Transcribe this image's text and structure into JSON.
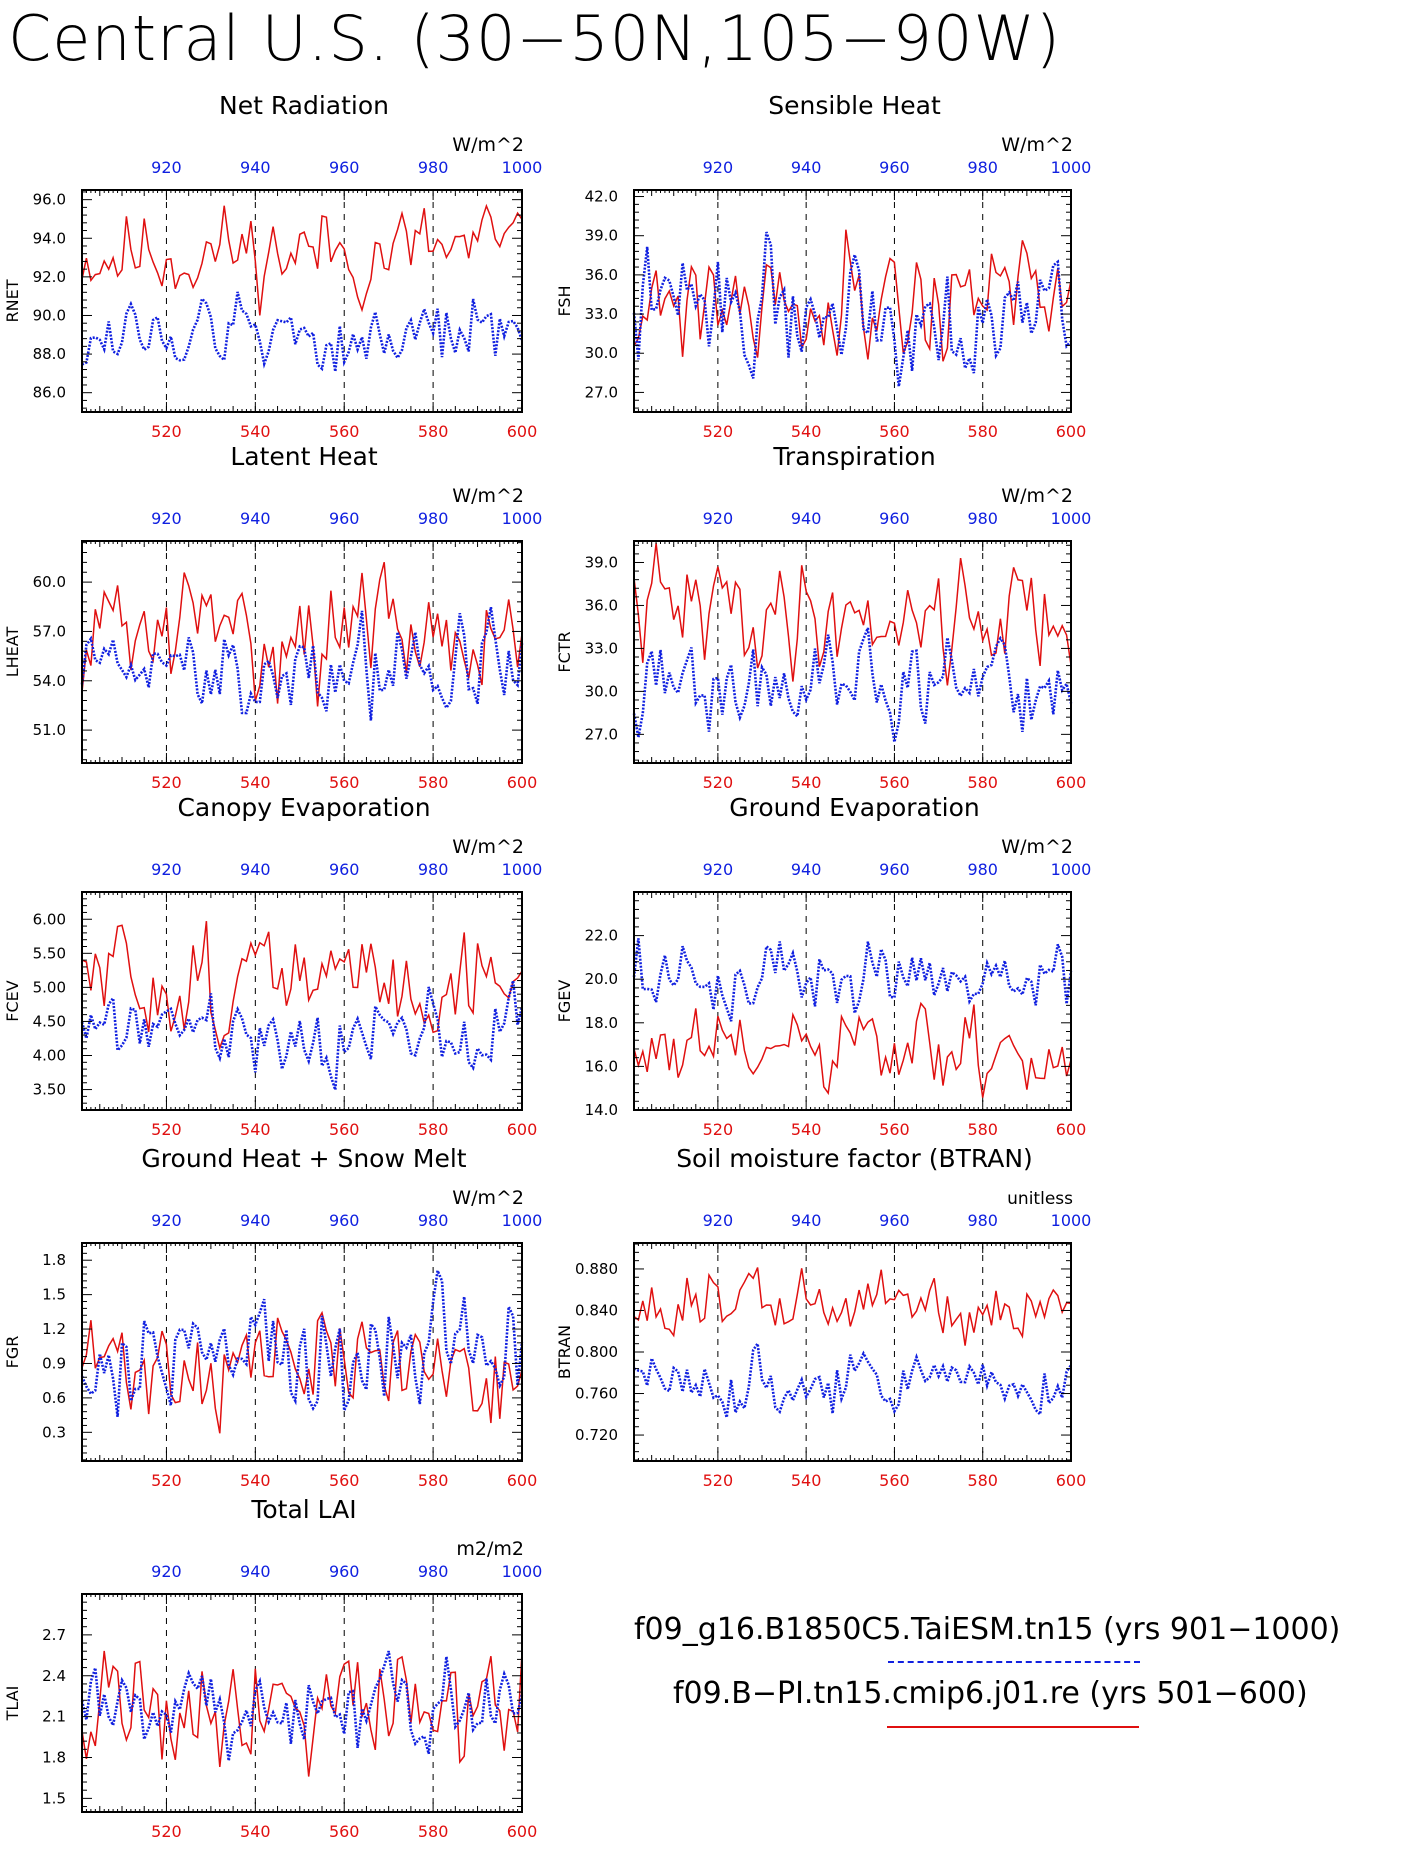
{
  "title": "Central U.S. (30−50N,105−90W)",
  "colors": {
    "red": "#e01010",
    "blue": "#1020e0",
    "axis": "#000000",
    "grid": "#000000"
  },
  "axes": {
    "bottom_ticks": [
      "520",
      "540",
      "560",
      "580",
      "600"
    ],
    "top_ticks": [
      "920",
      "940",
      "960",
      "980",
      "1000"
    ],
    "bottom_range": [
      501,
      600
    ],
    "top_range": [
      901,
      1000
    ],
    "vertical_dashed_lines_at": [
      520,
      540,
      560,
      580
    ]
  },
  "legend": {
    "entries": [
      {
        "label": "f09_g16.B1850C5.TaiESM.tn15 (yrs 901−1000)",
        "style": "dashed",
        "color": "#1020e0"
      },
      {
        "label": "f09.B−PI.tn15.cmip6.j01.re (yrs 501−600)",
        "style": "solid",
        "color": "#e01010"
      }
    ]
  },
  "chart_data": [
    {
      "type": "line",
      "title": "Net Radiation",
      "units": "W/m^2",
      "ylabel": "RNET",
      "ylim": [
        85.0,
        96.5
      ],
      "yticks": [
        "86.0",
        "88.0",
        "90.0",
        "92.0",
        "94.0",
        "96.0"
      ],
      "series": [
        {
          "color": "red",
          "baseline": 93.3,
          "spread": 1.5,
          "seed": 11
        },
        {
          "color": "blue",
          "baseline": 89.0,
          "spread": 1.2,
          "seed": 12
        }
      ]
    },
    {
      "type": "line",
      "title": "Sensible Heat",
      "units": "W/m^2",
      "ylabel": "FSH",
      "ylim": [
        25.5,
        42.5
      ],
      "yticks": [
        "27.0",
        "30.0",
        "33.0",
        "36.0",
        "39.0",
        "42.0"
      ],
      "series": [
        {
          "color": "red",
          "baseline": 34.5,
          "spread": 3.0,
          "seed": 21
        },
        {
          "color": "blue",
          "baseline": 33.5,
          "spread": 2.8,
          "seed": 22
        }
      ]
    },
    {
      "type": "line",
      "title": "Latent Heat",
      "units": "W/m^2",
      "ylabel": "LHEAT",
      "ylim": [
        49.0,
        62.5
      ],
      "yticks": [
        "51.0",
        "54.0",
        "57.0",
        "60.0"
      ],
      "series": [
        {
          "color": "red",
          "baseline": 57.0,
          "spread": 2.2,
          "seed": 31
        },
        {
          "color": "blue",
          "baseline": 54.8,
          "spread": 2.0,
          "seed": 32
        }
      ]
    },
    {
      "type": "line",
      "title": "Transpiration",
      "units": "W/m^2",
      "ylabel": "FCTR",
      "ylim": [
        25.0,
        40.5
      ],
      "yticks": [
        "27.0",
        "30.0",
        "33.0",
        "36.0",
        "39.0"
      ],
      "series": [
        {
          "color": "red",
          "baseline": 35.5,
          "spread": 2.5,
          "seed": 41
        },
        {
          "color": "blue",
          "baseline": 30.2,
          "spread": 2.0,
          "seed": 42
        }
      ]
    },
    {
      "type": "line",
      "title": "Canopy Evaporation",
      "units": "W/m^2",
      "ylabel": "FCEV",
      "ylim": [
        3.2,
        6.4
      ],
      "yticks": [
        "3.50",
        "4.00",
        "4.50",
        "5.00",
        "5.50",
        "6.00"
      ],
      "series": [
        {
          "color": "red",
          "baseline": 5.1,
          "spread": 0.5,
          "seed": 51
        },
        {
          "color": "blue",
          "baseline": 4.4,
          "spread": 0.35,
          "seed": 52
        }
      ]
    },
    {
      "type": "line",
      "title": "Ground Evaporation",
      "units": "W/m^2",
      "ylabel": "FGEV",
      "ylim": [
        14.0,
        24.0
      ],
      "yticks": [
        "14.0",
        "16.0",
        "18.0",
        "20.0",
        "22.0"
      ],
      "series": [
        {
          "color": "red",
          "baseline": 16.5,
          "spread": 1.3,
          "seed": 61
        },
        {
          "color": "blue",
          "baseline": 20.2,
          "spread": 1.0,
          "seed": 62
        }
      ]
    },
    {
      "type": "line",
      "title": "Ground Heat + Snow Melt",
      "units": "W/m^2",
      "ylabel": "FGR",
      "ylim": [
        0.05,
        1.95
      ],
      "yticks": [
        "0.3",
        "0.6",
        "0.9",
        "1.2",
        "1.5",
        "1.8"
      ],
      "series": [
        {
          "color": "red",
          "baseline": 0.9,
          "spread": 0.3,
          "seed": 71
        },
        {
          "color": "blue",
          "baseline": 0.95,
          "spread": 0.35,
          "seed": 72
        }
      ]
    },
    {
      "type": "line",
      "title": "Soil moisture factor (BTRAN)",
      "units": "unitless",
      "ylabel": "BTRAN",
      "ylim": [
        0.695,
        0.905
      ],
      "yticks": [
        "0.720",
        "0.760",
        "0.800",
        "0.840",
        "0.880"
      ],
      "series": [
        {
          "color": "red",
          "baseline": 0.845,
          "spread": 0.022,
          "seed": 81
        },
        {
          "color": "blue",
          "baseline": 0.772,
          "spread": 0.018,
          "seed": 82
        }
      ]
    },
    {
      "type": "line",
      "title": "Total LAI",
      "units": "m2/m2",
      "ylabel": "TLAI",
      "ylim": [
        1.4,
        3.0
      ],
      "yticks": [
        "1.5",
        "1.8",
        "2.1",
        "2.4",
        "2.7"
      ],
      "series": [
        {
          "color": "red",
          "baseline": 2.25,
          "spread": 0.3,
          "seed": 91
        },
        {
          "color": "blue",
          "baseline": 2.15,
          "spread": 0.22,
          "seed": 92
        }
      ]
    }
  ]
}
